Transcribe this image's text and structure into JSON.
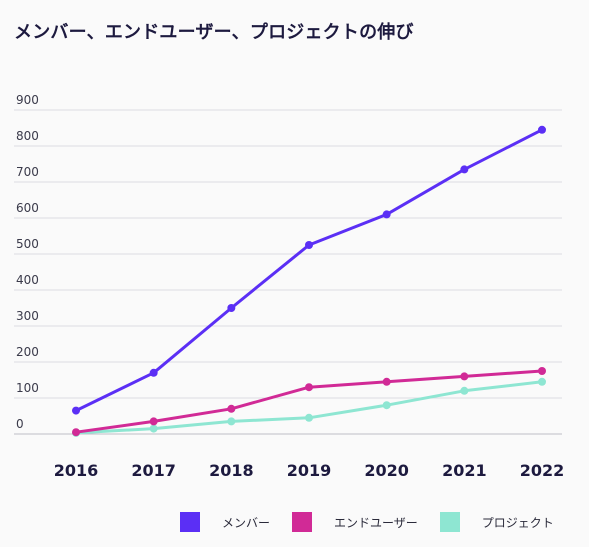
{
  "chart_data": {
    "type": "line",
    "title": "メンバー、エンドユーザー、プロジェクトの伸び",
    "x": [
      "2016",
      "2017",
      "2018",
      "2019",
      "2020",
      "2021",
      "2022"
    ],
    "ylim": [
      0,
      900
    ],
    "yticks": [
      0,
      100,
      200,
      300,
      400,
      500,
      600,
      700,
      800,
      900
    ],
    "grid": true,
    "legend_position": "bottom-right",
    "series": [
      {
        "name": "メンバー",
        "color": "#5b2ff5",
        "values": [
          65,
          170,
          350,
          525,
          610,
          735,
          845
        ]
      },
      {
        "name": "エンドユーザー",
        "color": "#d12a96",
        "values": [
          5,
          35,
          70,
          130,
          145,
          160,
          175
        ]
      },
      {
        "name": "プロジェクト",
        "color": "#8ee6d2",
        "values": [
          3,
          15,
          35,
          45,
          80,
          120,
          145
        ]
      }
    ]
  }
}
